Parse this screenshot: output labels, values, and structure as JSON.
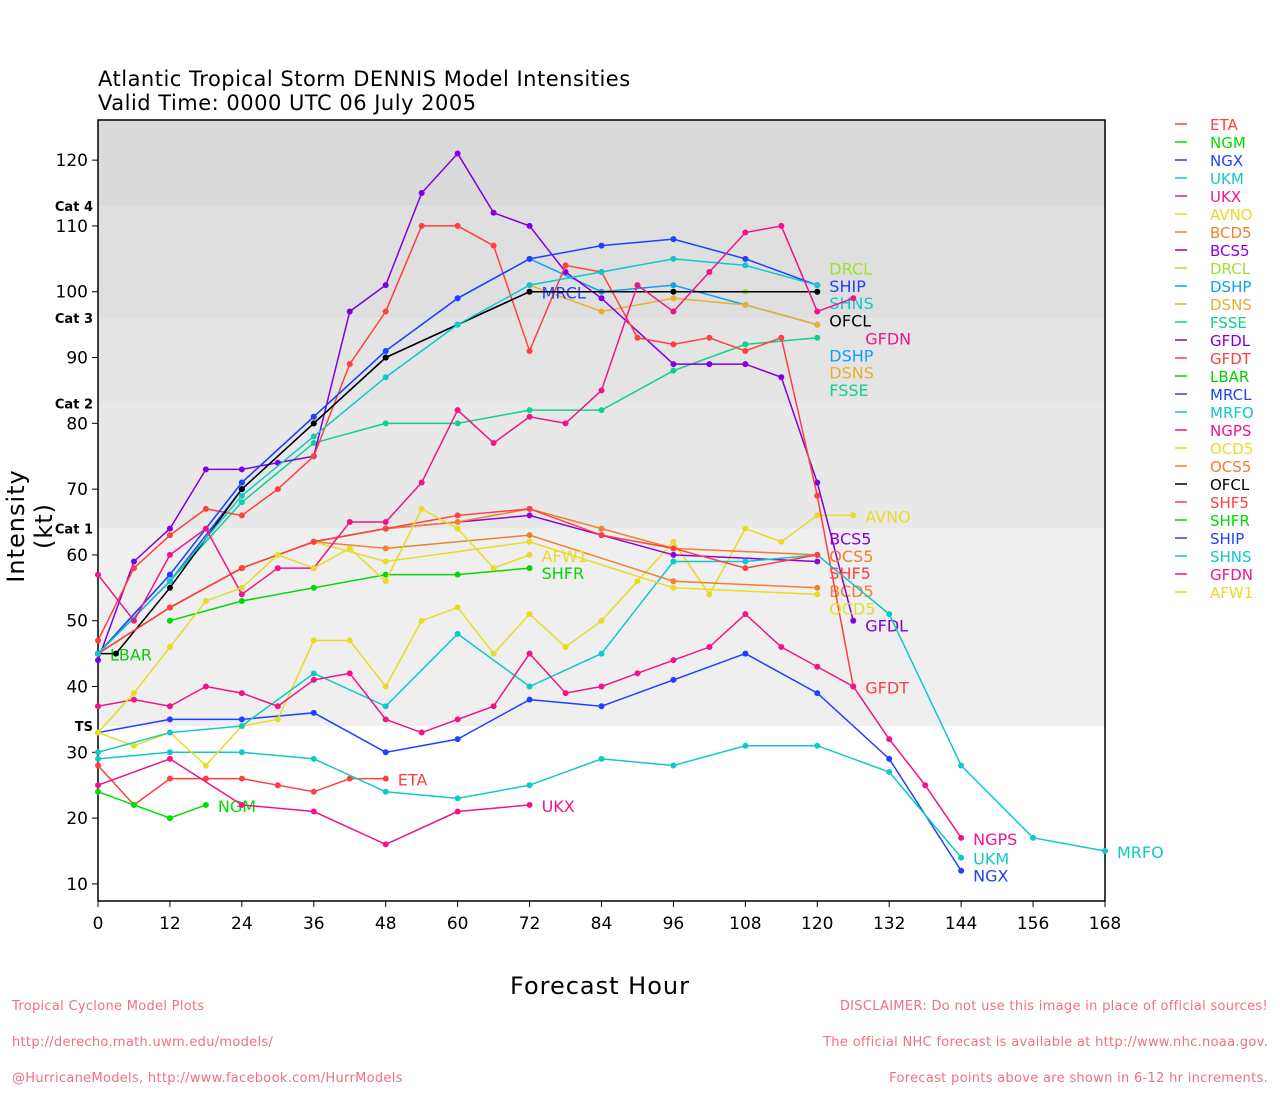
{
  "chart_data": {
    "type": "line",
    "title": "Atlantic Tropical Storm DENNIS Model Intensities",
    "subtitle": "Valid Time: 0000 UTC 06 July 2005",
    "xlabel": "Forecast Hour",
    "ylabel": "Intensity (kt)",
    "xlim": [
      0,
      168
    ],
    "ylim": [
      7.4,
      126.1
    ],
    "xticks": [
      0,
      12,
      24,
      36,
      48,
      60,
      72,
      84,
      96,
      108,
      120,
      132,
      144,
      156,
      168
    ],
    "yticks": [
      10,
      20,
      30,
      40,
      50,
      60,
      70,
      80,
      90,
      100,
      110,
      120
    ],
    "grid": false,
    "legend_position": "right",
    "categories_bands": [
      {
        "label": "TS",
        "threshold": 34
      },
      {
        "label": "Cat 1",
        "threshold": 64
      },
      {
        "label": "Cat 2",
        "threshold": 83
      },
      {
        "label": "Cat 3",
        "threshold": 96
      },
      {
        "label": "Cat 4",
        "threshold": 113
      }
    ],
    "series": [
      {
        "name": "ETA",
        "color": "#ff4040",
        "x": [
          0,
          6,
          12,
          18,
          24,
          30,
          36,
          42,
          48
        ],
        "y": [
          28,
          22,
          26,
          26,
          26,
          25,
          24,
          26,
          26
        ]
      },
      {
        "name": "NGM",
        "color": "#00dd00",
        "x": [
          0,
          6,
          12,
          18
        ],
        "y": [
          24,
          22,
          20,
          22
        ]
      },
      {
        "name": "NGX",
        "color": "#2040ff",
        "x": [
          0,
          12,
          24,
          36,
          48,
          60,
          72,
          84,
          96,
          108,
          120,
          132,
          144
        ],
        "y": [
          33,
          35,
          35,
          36,
          30,
          32,
          38,
          37,
          41,
          45,
          39,
          29,
          12
        ]
      },
      {
        "name": "UKM",
        "color": "#10c8c8",
        "x": [
          0,
          12,
          24,
          36,
          48,
          60,
          72,
          84,
          96,
          108,
          120,
          132,
          144
        ],
        "y": [
          29,
          30,
          30,
          29,
          24,
          23,
          25,
          29,
          28,
          31,
          31,
          27,
          14
        ]
      },
      {
        "name": "UKX",
        "color": "#f0148c",
        "x": [
          0,
          12,
          24,
          36,
          48,
          60,
          72
        ],
        "y": [
          25,
          29,
          22,
          21,
          16,
          21,
          22
        ]
      },
      {
        "name": "AVNO",
        "color": "#e8dc28",
        "x": [
          0,
          6,
          12,
          18,
          24,
          30,
          36,
          42,
          48,
          54,
          60,
          66,
          72,
          78,
          84,
          90,
          96,
          102,
          108,
          114,
          120,
          126
        ],
        "y": [
          33,
          31,
          33,
          28,
          34,
          35,
          47,
          47,
          40,
          50,
          52,
          45,
          51,
          46,
          50,
          56,
          62,
          54,
          64,
          62,
          66,
          66
        ]
      },
      {
        "name": "BCD5",
        "color": "#f08030",
        "x": [
          0,
          12,
          24,
          36,
          48,
          72,
          96,
          120
        ],
        "y": [
          45,
          52,
          58,
          62,
          61,
          63,
          56,
          55
        ]
      },
      {
        "name": "BCS5",
        "color": "#9000d8",
        "x": [
          0,
          12,
          24,
          36,
          48,
          72,
          84,
          96,
          120
        ],
        "y": [
          45,
          52,
          58,
          62,
          64,
          66,
          63,
          60,
          59
        ]
      },
      {
        "name": "DRCL",
        "color": "#a0e030",
        "x": [
          72,
          96,
          108,
          120
        ],
        "y": [
          100,
          100,
          100,
          100
        ]
      },
      {
        "name": "DSHP",
        "color": "#10a0f8",
        "x": [
          0,
          12,
          24,
          36,
          48,
          60,
          72,
          84,
          96,
          108,
          120
        ],
        "y": [
          45,
          57,
          71,
          81,
          91,
          99,
          105,
          100,
          101,
          98,
          95
        ]
      },
      {
        "name": "DSNS",
        "color": "#e8b030",
        "x": [
          72,
          84,
          96,
          108,
          120
        ],
        "y": [
          101,
          97,
          99,
          98,
          95
        ]
      },
      {
        "name": "FSSE",
        "color": "#10d090",
        "x": [
          0,
          12,
          24,
          36,
          48,
          60,
          72,
          84,
          96,
          108,
          120
        ],
        "y": [
          45,
          56,
          68,
          77,
          80,
          80,
          82,
          82,
          88,
          92,
          93
        ]
      },
      {
        "name": "GFDL",
        "color": "#8000e0",
        "x": [
          0,
          6,
          12,
          18,
          24,
          30,
          36,
          42,
          48,
          54,
          60,
          66,
          72,
          78,
          84,
          96,
          102,
          108,
          114,
          120,
          126
        ],
        "y": [
          44,
          59,
          64,
          73,
          73,
          74,
          75,
          97,
          101,
          115,
          121,
          112,
          110,
          103,
          99,
          89,
          89,
          89,
          87,
          71,
          50
        ]
      },
      {
        "name": "GFDT",
        "color": "#ff4040",
        "x": [
          0,
          6,
          12,
          18,
          24,
          30,
          36,
          42,
          48,
          54,
          60,
          66,
          72,
          78,
          84,
          90,
          96,
          102,
          108,
          114,
          120,
          126
        ],
        "y": [
          47,
          58,
          63,
          67,
          66,
          70,
          75,
          89,
          97,
          110,
          110,
          107,
          91,
          104,
          103,
          93,
          92,
          93,
          91,
          93,
          69,
          40
        ]
      },
      {
        "name": "LBAR",
        "color": "#00d000",
        "x": [
          0
        ],
        "y": [
          45
        ]
      },
      {
        "name": "MRCL",
        "color": "#2040ff",
        "x": [
          0,
          12,
          24,
          36,
          48,
          60,
          72
        ],
        "y": [
          45,
          56,
          70,
          80,
          90,
          95,
          100
        ]
      },
      {
        "name": "MRFO",
        "color": "#10c8c8",
        "x": [
          0,
          12,
          24,
          36,
          48,
          60,
          72,
          84,
          96,
          108,
          120,
          132,
          144,
          156,
          168
        ],
        "y": [
          30,
          33,
          34,
          42,
          37,
          48,
          40,
          45,
          59,
          59,
          60,
          51,
          28,
          17,
          15
        ]
      },
      {
        "name": "NGPS",
        "color": "#f0148c",
        "x": [
          0,
          6,
          12,
          18,
          24,
          30,
          36,
          42,
          48,
          54,
          60,
          66,
          72,
          78,
          84,
          90,
          96,
          102,
          108,
          114,
          120,
          126,
          132,
          138,
          144
        ],
        "y": [
          37,
          38,
          37,
          40,
          39,
          37,
          41,
          42,
          35,
          33,
          35,
          37,
          45,
          39,
          40,
          42,
          44,
          46,
          51,
          46,
          43,
          40,
          32,
          25,
          17
        ]
      },
      {
        "name": "OCD5",
        "color": "#e8dc28",
        "x": [
          0,
          12,
          24,
          36,
          48,
          72,
          96,
          120
        ],
        "y": [
          45,
          52,
          58,
          62,
          59,
          62,
          55,
          54
        ]
      },
      {
        "name": "OCS5",
        "color": "#f08030",
        "x": [
          0,
          12,
          24,
          36,
          48,
          60,
          72,
          84,
          96,
          120
        ],
        "y": [
          45,
          52,
          58,
          62,
          64,
          65,
          67,
          64,
          61,
          60
        ]
      },
      {
        "name": "OFCL",
        "color": "#000000",
        "x": [
          0,
          3,
          12,
          24,
          36,
          48,
          72,
          96,
          120
        ],
        "y": [
          45,
          45,
          55,
          70,
          80,
          90,
          100,
          100,
          100
        ]
      },
      {
        "name": "SHF5",
        "color": "#ff4040",
        "x": [
          0,
          12,
          24,
          36,
          48,
          60,
          72,
          84,
          96,
          108,
          120
        ],
        "y": [
          45,
          52,
          58,
          62,
          64,
          66,
          67,
          63,
          61,
          58,
          60
        ]
      },
      {
        "name": "SHFR",
        "color": "#00d800",
        "x": [
          12,
          24,
          36,
          48,
          60,
          72
        ],
        "y": [
          50,
          53,
          55,
          57,
          57,
          58
        ]
      },
      {
        "name": "SHIP",
        "color": "#2040ff",
        "x": [
          0,
          12,
          24,
          36,
          48,
          60,
          72,
          84,
          96,
          108,
          120
        ],
        "y": [
          45,
          57,
          71,
          81,
          91,
          99,
          105,
          107,
          108,
          105,
          101
        ]
      },
      {
        "name": "SHNS",
        "color": "#10c8c8",
        "x": [
          0,
          12,
          24,
          36,
          48,
          60,
          72,
          84,
          96,
          108,
          120
        ],
        "y": [
          45,
          56,
          69,
          78,
          87,
          95,
          101,
          103,
          105,
          104,
          101
        ]
      },
      {
        "name": "GFDN",
        "color": "#f0148c",
        "x": [
          0,
          6,
          12,
          18,
          24,
          30,
          36,
          42,
          48,
          54,
          60,
          66,
          72,
          78,
          84,
          90,
          96,
          102,
          108,
          114,
          120,
          126
        ],
        "y": [
          57,
          50,
          60,
          64,
          54,
          58,
          58,
          65,
          65,
          71,
          82,
          77,
          81,
          80,
          85,
          101,
          97,
          103,
          109,
          110,
          97,
          99
        ]
      },
      {
        "name": "AFW1",
        "color": "#e8dc28",
        "x": [
          0,
          6,
          12,
          18,
          24,
          30,
          36,
          42,
          48,
          54,
          60,
          66,
          72
        ],
        "y": [
          33,
          39,
          46,
          53,
          55,
          60,
          58,
          61,
          56,
          67,
          64,
          58,
          60
        ]
      }
    ]
  },
  "footer": {
    "left": [
      "Tropical Cyclone Model Plots",
      "http://derecho.math.uwm.edu/models/",
      "@HurricaneModels, http://www.facebook.com/HurrModels"
    ],
    "right": [
      "DISCLAIMER: Do not use this image in place of official sources!",
      "The official NHC forecast is available at http://www.nhc.noaa.gov.",
      "Forecast points above are shown in 6-12 hr increments."
    ]
  }
}
